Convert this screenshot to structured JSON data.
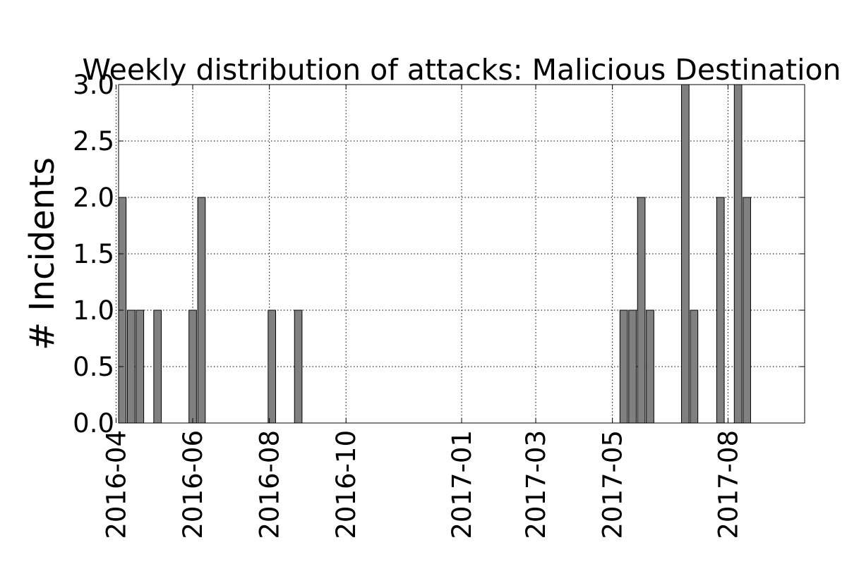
{
  "chart_data": {
    "type": "bar",
    "title": "Weekly distribution of attacks: Malicious Destination",
    "xlabel": "",
    "ylabel": "# Incidents",
    "ylim": [
      0,
      3
    ],
    "yticks": [
      "0.0",
      "0.5",
      "1.0",
      "1.5",
      "2.0",
      "2.5",
      "3.0"
    ],
    "xticks": [
      "2016-04",
      "2016-06",
      "2016-08",
      "2016-10",
      "2017-01",
      "2017-03",
      "2017-05",
      "2017-08"
    ],
    "grid": true,
    "bar_color": "#808080",
    "x": [
      "2016-04-03",
      "2016-04-10",
      "2016-04-17",
      "2016-05-01",
      "2016-05-29",
      "2016-06-05",
      "2016-07-31",
      "2016-08-21",
      "2017-05-07",
      "2017-05-14",
      "2017-05-21",
      "2017-05-28",
      "2017-06-25",
      "2017-07-02",
      "2017-07-23",
      "2017-08-06",
      "2017-08-13"
    ],
    "values": [
      2,
      1,
      1,
      1,
      1,
      2,
      1,
      1,
      1,
      1,
      2,
      1,
      3,
      1,
      2,
      3,
      2
    ]
  }
}
